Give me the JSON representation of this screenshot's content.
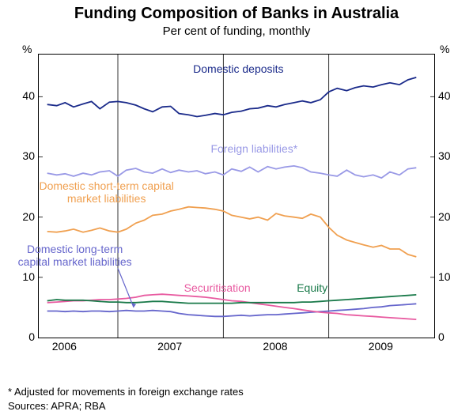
{
  "title": "Funding Composition of Banks in Australia",
  "subtitle": "Per cent of funding, monthly",
  "footnote": "*   Adjusted for movements in foreign exchange rates",
  "sources": "Sources: APRA; RBA",
  "chart": {
    "type": "line",
    "ylabel_left": "%",
    "ylabel_right": "%",
    "ylim": [
      0,
      47
    ],
    "yticks": [
      0,
      10,
      20,
      30,
      40
    ],
    "xlim": [
      2005.75,
      2009.5
    ],
    "xticks": [
      2006,
      2007,
      2008,
      2009
    ],
    "xdividers": [
      2006.5,
      2007.5,
      2008.5
    ],
    "background_color": "#ffffff",
    "grid_color": "#000000",
    "line_width": 1.8,
    "series": [
      {
        "name": "Domestic deposits",
        "color": "#1a2a8a",
        "label_x": 2007.65,
        "label_y": 44.5,
        "x": [
          2005.83,
          2005.92,
          2006.0,
          2006.08,
          2006.17,
          2006.25,
          2006.33,
          2006.42,
          2006.5,
          2006.58,
          2006.67,
          2006.75,
          2006.83,
          2006.92,
          2007.0,
          2007.08,
          2007.17,
          2007.25,
          2007.33,
          2007.42,
          2007.5,
          2007.58,
          2007.67,
          2007.75,
          2007.83,
          2007.92,
          2008.0,
          2008.08,
          2008.17,
          2008.25,
          2008.33,
          2008.42,
          2008.5,
          2008.58,
          2008.67,
          2008.75,
          2008.83,
          2008.92,
          2009.0,
          2009.08,
          2009.17,
          2009.25,
          2009.33
        ],
        "y": [
          38.7,
          38.5,
          39.0,
          38.3,
          38.8,
          39.2,
          38.0,
          39.1,
          39.2,
          39.0,
          38.6,
          38.0,
          37.5,
          38.3,
          38.4,
          37.2,
          37.0,
          36.7,
          36.9,
          37.2,
          37.0,
          37.4,
          37.6,
          38.0,
          38.1,
          38.5,
          38.3,
          38.7,
          39.0,
          39.3,
          39.0,
          39.5,
          40.8,
          41.4,
          41.0,
          41.5,
          41.8,
          41.6,
          42.0,
          42.3,
          42.0,
          42.8,
          43.2
        ]
      },
      {
        "name": "Foreign liabilities*",
        "color": "#9999e6",
        "label_x": 2007.8,
        "label_y": 31.3,
        "x": [
          2005.83,
          2005.92,
          2006.0,
          2006.08,
          2006.17,
          2006.25,
          2006.33,
          2006.42,
          2006.5,
          2006.58,
          2006.67,
          2006.75,
          2006.83,
          2006.92,
          2007.0,
          2007.08,
          2007.17,
          2007.25,
          2007.33,
          2007.42,
          2007.5,
          2007.58,
          2007.67,
          2007.75,
          2007.83,
          2007.92,
          2008.0,
          2008.08,
          2008.17,
          2008.25,
          2008.33,
          2008.42,
          2008.5,
          2008.58,
          2008.67,
          2008.75,
          2008.83,
          2008.92,
          2009.0,
          2009.08,
          2009.17,
          2009.25,
          2009.33
        ],
        "y": [
          27.3,
          27.0,
          27.2,
          26.8,
          27.3,
          27.0,
          27.5,
          27.7,
          26.8,
          27.8,
          28.1,
          27.5,
          27.3,
          28.0,
          27.4,
          27.8,
          27.5,
          27.7,
          27.2,
          27.5,
          27.0,
          28.0,
          27.6,
          28.3,
          27.5,
          28.4,
          28.0,
          28.3,
          28.5,
          28.2,
          27.5,
          27.3,
          27.0,
          26.8,
          27.8,
          27.0,
          26.7,
          27.0,
          26.5,
          27.5,
          27.0,
          28.0,
          28.2
        ]
      },
      {
        "name": "Domestic short-term capital market liabilities",
        "color": "#f0a050",
        "label_x": 2006.4,
        "label_y": 24,
        "label_multiline": [
          "Domestic short-term capital",
          "market liabilities"
        ],
        "x": [
          2005.83,
          2005.92,
          2006.0,
          2006.08,
          2006.17,
          2006.25,
          2006.33,
          2006.42,
          2006.5,
          2006.58,
          2006.67,
          2006.75,
          2006.83,
          2006.92,
          2007.0,
          2007.08,
          2007.17,
          2007.25,
          2007.33,
          2007.42,
          2007.5,
          2007.58,
          2007.67,
          2007.75,
          2007.83,
          2007.92,
          2008.0,
          2008.08,
          2008.17,
          2008.25,
          2008.33,
          2008.42,
          2008.5,
          2008.58,
          2008.67,
          2008.75,
          2008.83,
          2008.92,
          2009.0,
          2009.08,
          2009.17,
          2009.25,
          2009.33
        ],
        "y": [
          17.6,
          17.5,
          17.7,
          18.0,
          17.5,
          17.8,
          18.2,
          17.7,
          17.5,
          18.0,
          19.0,
          19.5,
          20.3,
          20.5,
          21.0,
          21.3,
          21.7,
          21.6,
          21.5,
          21.3,
          21.0,
          20.3,
          20.0,
          19.7,
          20.0,
          19.5,
          20.6,
          20.2,
          20.0,
          19.8,
          20.5,
          20.0,
          18.3,
          17.0,
          16.2,
          15.8,
          15.4,
          15.0,
          15.3,
          14.7,
          14.7,
          13.8,
          13.4
        ]
      },
      {
        "name": "Domestic long-term capital market liabilities",
        "color": "#6666cc",
        "label_x": 2006.1,
        "label_y": 13.5,
        "label_multiline": [
          "Domestic long-term",
          "capital market liabilities"
        ],
        "arrow_to_x": 2006.65,
        "arrow_to_y": 5.0,
        "x": [
          2005.83,
          2005.92,
          2006.0,
          2006.08,
          2006.17,
          2006.25,
          2006.33,
          2006.42,
          2006.5,
          2006.58,
          2006.67,
          2006.75,
          2006.83,
          2006.92,
          2007.0,
          2007.08,
          2007.17,
          2007.25,
          2007.33,
          2007.42,
          2007.5,
          2007.58,
          2007.67,
          2007.75,
          2007.83,
          2007.92,
          2008.0,
          2008.08,
          2008.17,
          2008.25,
          2008.33,
          2008.42,
          2008.5,
          2008.58,
          2008.67,
          2008.75,
          2008.83,
          2008.92,
          2009.0,
          2009.08,
          2009.17,
          2009.25,
          2009.33
        ],
        "y": [
          4.4,
          4.4,
          4.3,
          4.4,
          4.3,
          4.4,
          4.4,
          4.3,
          4.4,
          4.5,
          4.4,
          4.4,
          4.5,
          4.4,
          4.3,
          4.0,
          3.8,
          3.7,
          3.6,
          3.5,
          3.5,
          3.6,
          3.7,
          3.6,
          3.7,
          3.8,
          3.8,
          3.9,
          4.0,
          4.1,
          4.2,
          4.3,
          4.4,
          4.5,
          4.6,
          4.7,
          4.8,
          5.0,
          5.1,
          5.3,
          5.4,
          5.5,
          5.6
        ]
      },
      {
        "name": "Securitisation",
        "color": "#e85aa0",
        "label_x": 2007.45,
        "label_y": 8.2,
        "x": [
          2005.83,
          2005.92,
          2006.0,
          2006.08,
          2006.17,
          2006.25,
          2006.33,
          2006.42,
          2006.5,
          2006.58,
          2006.67,
          2006.75,
          2006.83,
          2006.92,
          2007.0,
          2007.08,
          2007.17,
          2007.25,
          2007.33,
          2007.42,
          2007.5,
          2007.58,
          2007.67,
          2007.75,
          2007.83,
          2007.92,
          2008.0,
          2008.08,
          2008.17,
          2008.25,
          2008.33,
          2008.42,
          2008.5,
          2008.58,
          2008.67,
          2008.75,
          2008.83,
          2008.92,
          2009.0,
          2009.08,
          2009.17,
          2009.25,
          2009.33
        ],
        "y": [
          5.8,
          5.9,
          6.0,
          6.1,
          6.1,
          6.2,
          6.3,
          6.3,
          6.4,
          6.5,
          6.7,
          7.0,
          7.1,
          7.2,
          7.1,
          7.0,
          6.9,
          6.8,
          6.7,
          6.5,
          6.3,
          6.1,
          6.0,
          5.8,
          5.6,
          5.4,
          5.2,
          5.0,
          4.8,
          4.6,
          4.4,
          4.2,
          4.1,
          4.0,
          3.8,
          3.7,
          3.6,
          3.5,
          3.4,
          3.3,
          3.2,
          3.1,
          3.0
        ]
      },
      {
        "name": "Equity",
        "color": "#1a7a4a",
        "label_x": 2008.35,
        "label_y": 8.2,
        "x": [
          2005.83,
          2005.92,
          2006.0,
          2006.08,
          2006.17,
          2006.25,
          2006.33,
          2006.42,
          2006.5,
          2006.58,
          2006.67,
          2006.75,
          2006.83,
          2006.92,
          2007.0,
          2007.08,
          2007.17,
          2007.25,
          2007.33,
          2007.42,
          2007.5,
          2007.58,
          2007.67,
          2007.75,
          2007.83,
          2007.92,
          2008.0,
          2008.08,
          2008.17,
          2008.25,
          2008.33,
          2008.42,
          2008.5,
          2008.58,
          2008.67,
          2008.75,
          2008.83,
          2008.92,
          2009.0,
          2009.08,
          2009.17,
          2009.25,
          2009.33
        ],
        "y": [
          6.1,
          6.3,
          6.2,
          6.2,
          6.2,
          6.1,
          6.0,
          5.9,
          5.9,
          5.8,
          5.8,
          5.9,
          6.0,
          6.0,
          5.9,
          5.8,
          5.7,
          5.7,
          5.7,
          5.7,
          5.7,
          5.7,
          5.8,
          5.8,
          5.8,
          5.8,
          5.8,
          5.8,
          5.8,
          5.9,
          5.9,
          6.0,
          6.1,
          6.2,
          6.3,
          6.4,
          6.5,
          6.6,
          6.7,
          6.8,
          6.9,
          7.0,
          7.1
        ]
      }
    ]
  }
}
